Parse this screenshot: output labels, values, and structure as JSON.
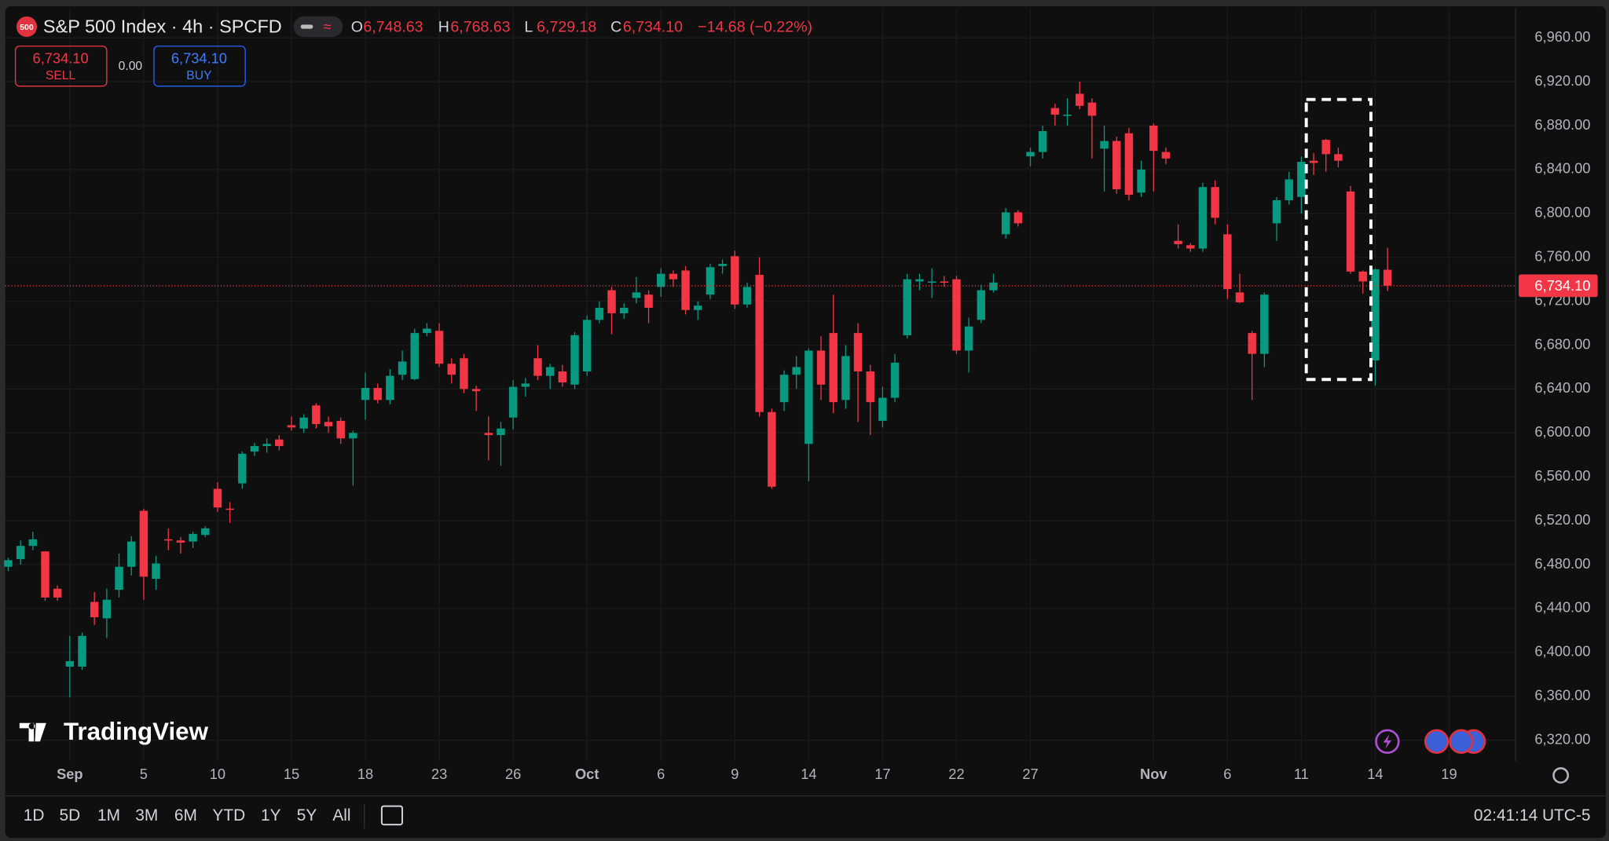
{
  "header": {
    "badge": "500",
    "symbol": "S&P 500 Index · 4h · SPCFD",
    "ohlc": [
      {
        "letter": "O",
        "value": "6,748.63"
      },
      {
        "letter": "H",
        "value": "6,768.63"
      },
      {
        "letter": "L",
        "value": "6,729.18"
      },
      {
        "letter": "C",
        "value": "6,734.10"
      }
    ],
    "change": "−14.68 (−0.22%)"
  },
  "trade": {
    "sell_price": "6,734.10",
    "sell_label": "SELL",
    "spread": "0.00",
    "buy_price": "6,734.10",
    "buy_label": "BUY"
  },
  "branding": "TradingView",
  "toolbar": {
    "ranges": [
      "1D",
      "5D",
      "1M",
      "3M",
      "6M",
      "YTD",
      "1Y",
      "5Y",
      "All"
    ],
    "clock": "02:41:14 UTC-5"
  },
  "chart_data": {
    "type": "candlestick",
    "up_color": "#089981",
    "down_color": "#f23645",
    "grid": true,
    "last_price": {
      "value": 6734.1,
      "label": "6,734.10"
    },
    "xlim": [
      -0.25,
      122.4
    ],
    "xticks": [
      {
        "value": 5,
        "label": "Sep"
      },
      {
        "value": 11,
        "label": "5"
      },
      {
        "value": 17,
        "label": "10"
      },
      {
        "value": 23,
        "label": "15"
      },
      {
        "value": 29,
        "label": "18"
      },
      {
        "value": 35,
        "label": "23"
      },
      {
        "value": 41,
        "label": "26"
      },
      {
        "value": 47,
        "label": "Oct"
      },
      {
        "value": 53,
        "label": "6"
      },
      {
        "value": 59,
        "label": "9"
      },
      {
        "value": 65,
        "label": "14"
      },
      {
        "value": 71,
        "label": "17"
      },
      {
        "value": 77,
        "label": "22"
      },
      {
        "value": 83,
        "label": "27"
      },
      {
        "value": 93,
        "label": "Nov"
      },
      {
        "value": 99,
        "label": "6"
      },
      {
        "value": 105,
        "label": "11"
      },
      {
        "value": 111,
        "label": "14"
      },
      {
        "value": 117,
        "label": "19"
      }
    ],
    "ylim": [
      6301,
      6987
    ],
    "yticks": [
      {
        "value": 6320,
        "label": "6,320.00"
      },
      {
        "value": 6360,
        "label": "6,360.00"
      },
      {
        "value": 6400,
        "label": "6,400.00"
      },
      {
        "value": 6440,
        "label": "6,440.00"
      },
      {
        "value": 6480,
        "label": "6,480.00"
      },
      {
        "value": 6520,
        "label": "6,520.00"
      },
      {
        "value": 6560,
        "label": "6,560.00"
      },
      {
        "value": 6600,
        "label": "6,600.00"
      },
      {
        "value": 6640,
        "label": "6,640.00"
      },
      {
        "value": 6680,
        "label": "6,680.00"
      },
      {
        "value": 6720,
        "label": "6,720.00"
      },
      {
        "value": 6760,
        "label": "6,760.00"
      },
      {
        "value": 6800,
        "label": "6,800.00"
      },
      {
        "value": 6840,
        "label": "6,840.00"
      },
      {
        "value": 6880,
        "label": "6,880.00"
      },
      {
        "value": 6920,
        "label": "6,920.00"
      },
      {
        "value": 6960,
        "label": "6,960.00"
      }
    ],
    "open": [
      6478,
      6485,
      6497,
      6492,
      6458,
      6387,
      6387,
      6446,
      6431,
      6457,
      6478,
      6529,
      6467,
      6503,
      6502,
      6501,
      6507,
      6549,
      6531,
      6554,
      6583,
      6588,
      6594,
      6607,
      6604,
      6625,
      6610,
      6611,
      6595,
      6630,
      6641,
      6630,
      6653,
      6649,
      6691,
      6693,
      6663,
      6668,
      6640,
      6600,
      6598,
      6614,
      6642,
      6668,
      6652,
      6656,
      6644,
      6656,
      6703,
      6730,
      6709,
      6723,
      6726,
      6733,
      6745,
      6748,
      6712,
      6726,
      6752,
      6761,
      6717,
      6744,
      6619,
      6628,
      6653,
      6590,
      6675,
      6691,
      6630,
      6691,
      6656,
      6611,
      6632,
      6689,
      6738,
      6737,
      6738,
      6740,
      6675,
      6703,
      6730,
      6781,
      6801,
      6852,
      6856,
      6896,
      6889,
      6909,
      6901,
      6859,
      6866,
      6873,
      6819,
      6880,
      6856,
      6775,
      6771,
      6768,
      6824,
      6781,
      6728,
      6691,
      6672,
      6791,
      6812,
      6815,
      6848,
      6867,
      6854,
      6820,
      6747,
      6666,
      6748.63
    ],
    "high": [
      6486,
      6502,
      6510,
      6492,
      6461,
      6415,
      6418,
      6455,
      6458,
      6490,
      6506,
      6531,
      6488,
      6513,
      6505,
      6510,
      6515,
      6555,
      6537,
      6583,
      6591,
      6595,
      6598,
      6615,
      6617,
      6627,
      6615,
      6614,
      6602,
      6655,
      6645,
      6658,
      6675,
      6695,
      6700,
      6700,
      6668,
      6672,
      6643,
      6615,
      6610,
      6648,
      6650,
      6680,
      6663,
      6662,
      6692,
      6707,
      6720,
      6733,
      6718,
      6742,
      6730,
      6750,
      6748,
      6752,
      6720,
      6754,
      6758,
      6766,
      6737,
      6760,
      6622,
      6657,
      6670,
      6677,
      6688,
      6726,
      6680,
      6700,
      6662,
      6642,
      6672,
      6745,
      6745,
      6750,
      6743,
      6743,
      6705,
      6735,
      6745,
      6805,
      6803,
      6860,
      6880,
      6900,
      6905,
      6920,
      6905,
      6880,
      6870,
      6878,
      6848,
      6882,
      6860,
      6790,
      6773,
      6828,
      6830,
      6790,
      6745,
      6693,
      6728,
      6815,
      6838,
      6852,
      6855,
      6868,
      6860,
      6825,
      6748,
      6750,
      6768.63
    ],
    "low": [
      6474,
      6480,
      6493,
      6447,
      6447,
      6359,
      6384,
      6425,
      6413,
      6450,
      6470,
      6448,
      6457,
      6493,
      6490,
      6495,
      6505,
      6528,
      6518,
      6549,
      6579,
      6582,
      6584,
      6602,
      6600,
      6604,
      6600,
      6590,
      6552,
      6612,
      6627,
      6626,
      6648,
      6648,
      6688,
      6660,
      6645,
      6636,
      6620,
      6575,
      6570,
      6603,
      6633,
      6648,
      6640,
      6642,
      6640,
      6652,
      6700,
      6690,
      6704,
      6718,
      6700,
      6724,
      6733,
      6708,
      6703,
      6722,
      6745,
      6713,
      6714,
      6615,
      6549,
      6620,
      6640,
      6556,
      6630,
      6618,
      6622,
      6610,
      6598,
      6605,
      6628,
      6686,
      6730,
      6723,
      6733,
      6672,
      6655,
      6700,
      6728,
      6777,
      6788,
      6843,
      6850,
      6880,
      6880,
      6895,
      6850,
      6820,
      6818,
      6812,
      6815,
      6820,
      6845,
      6768,
      6765,
      6765,
      6790,
      6722,
      6718,
      6630,
      6660,
      6775,
      6808,
      6800,
      6835,
      6838,
      6842,
      6745,
      6727,
      6643,
      6729.18
    ],
    "close": [
      6484,
      6497,
      6503,
      6450,
      6450,
      6392,
      6415,
      6432,
      6448,
      6478,
      6501,
      6469,
      6481,
      6502,
      6500,
      6508,
      6513,
      6532,
      6530,
      6581,
      6588,
      6590,
      6588,
      6605,
      6614,
      6608,
      6606,
      6595,
      6600,
      6641,
      6630,
      6652,
      6665,
      6691,
      6695,
      6663,
      6653,
      6640,
      6638,
      6598,
      6604,
      6642,
      6645,
      6652,
      6660,
      6646,
      6689,
      6703,
      6714,
      6709,
      6714,
      6728,
      6714,
      6745,
      6740,
      6712,
      6716,
      6751,
      6754,
      6717,
      6733,
      6619,
      6551,
      6653,
      6660,
      6675,
      6644,
      6628,
      6670,
      6656,
      6628,
      6632,
      6664,
      6740,
      6740,
      6738,
      6737,
      6675,
      6697,
      6730,
      6737,
      6801,
      6791,
      6856,
      6875,
      6890,
      6890,
      6898,
      6889,
      6866,
      6822,
      6817,
      6840,
      6857,
      6850,
      6772,
      6768,
      6824,
      6796,
      6731,
      6719,
      6672,
      6726,
      6812,
      6831,
      6847,
      6846,
      6854,
      6848,
      6747,
      6738,
      6749,
      6734.1
    ]
  }
}
